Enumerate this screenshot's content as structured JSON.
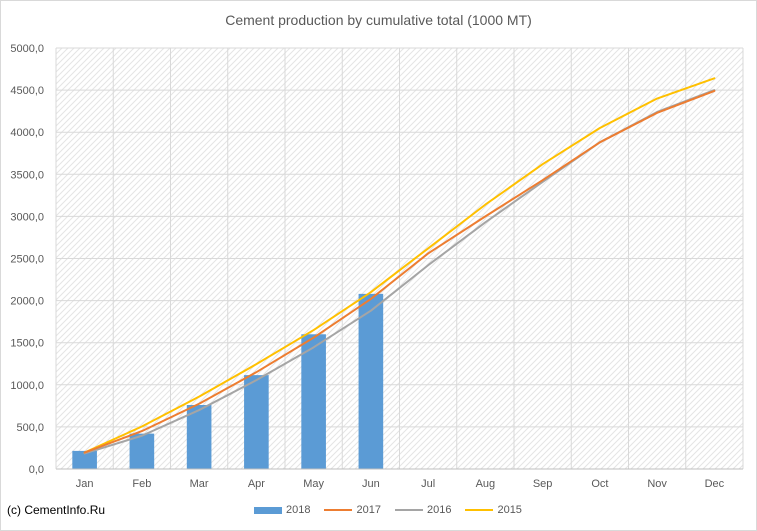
{
  "chart_data": {
    "type": "bar+line",
    "title": "Cement production by cumulative total (1000 MT)",
    "categories": [
      "Jan",
      "Feb",
      "Mar",
      "Apr",
      "May",
      "Jun",
      "Jul",
      "Aug",
      "Sep",
      "Oct",
      "Nov",
      "Dec"
    ],
    "ylim": [
      0,
      5000
    ],
    "yticks": [
      "0,0",
      "500,0",
      "1000,0",
      "1500,0",
      "2000,0",
      "2500,0",
      "3000,0",
      "3500,0",
      "4000,0",
      "4500,0",
      "5000,0"
    ],
    "grid": true,
    "legend_position": "bottom",
    "series": [
      {
        "name": "2018",
        "kind": "bar",
        "color": "#5b9bd5",
        "values": [
          215,
          420,
          760,
          1115,
          1600,
          2080,
          null,
          null,
          null,
          null,
          null,
          null
        ]
      },
      {
        "name": "2017",
        "kind": "line",
        "color": "#ed7d31",
        "values": [
          195,
          450,
          775,
          1150,
          1560,
          2020,
          2560,
          3000,
          3430,
          3880,
          4230,
          4490
        ]
      },
      {
        "name": "2016",
        "kind": "line",
        "color": "#a5a5a5",
        "values": [
          185,
          395,
          700,
          1055,
          1445,
          1880,
          2420,
          2930,
          3410,
          3880,
          4240,
          4500
        ]
      },
      {
        "name": "2015",
        "kind": "line",
        "color": "#ffc000",
        "values": [
          195,
          505,
          860,
          1245,
          1650,
          2100,
          2620,
          3140,
          3620,
          4050,
          4400,
          4640
        ]
      }
    ]
  },
  "footer": {
    "copyright": "(c) CementInfo.Ru"
  }
}
